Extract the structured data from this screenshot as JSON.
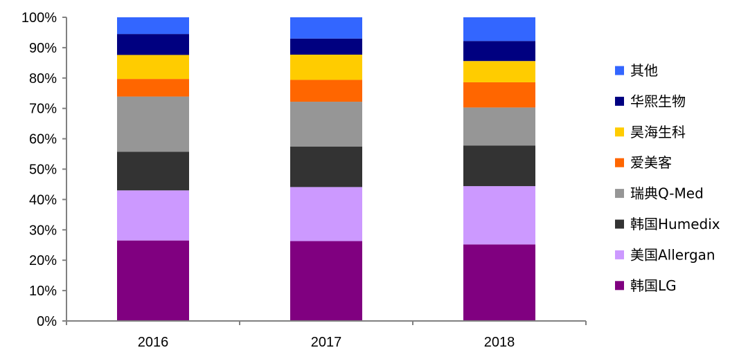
{
  "chart_data": {
    "type": "bar",
    "stacked": true,
    "categories": [
      "2016",
      "2017",
      "2018"
    ],
    "series": [
      {
        "name": "韩国LG",
        "color": "#800080",
        "values": [
          26.5,
          26.3,
          25.2
        ]
      },
      {
        "name": "美国Allergan",
        "color": "#CC99FF",
        "values": [
          16.5,
          17.8,
          19.2
        ]
      },
      {
        "name": "韩国Humedix",
        "color": "#333333",
        "values": [
          12.7,
          13.3,
          13.4
        ]
      },
      {
        "name": "瑞典Q-Med",
        "color": "#969696",
        "values": [
          18.2,
          14.8,
          12.5
        ]
      },
      {
        "name": "爱美客",
        "color": "#FF6600",
        "values": [
          5.8,
          7.2,
          8.3
        ]
      },
      {
        "name": "昊海生科",
        "color": "#FFCC00",
        "values": [
          7.9,
          8.3,
          7.0
        ]
      },
      {
        "name": "华熙生物",
        "color": "#000080",
        "values": [
          6.9,
          5.3,
          6.6
        ]
      },
      {
        "name": "其他",
        "color": "#3366FF",
        "values": [
          5.5,
          7.0,
          7.8
        ]
      }
    ],
    "y_ticks": [
      "0%",
      "10%",
      "20%",
      "30%",
      "40%",
      "50%",
      "60%",
      "70%",
      "80%",
      "90%",
      "100%"
    ],
    "ylim": [
      0,
      100
    ],
    "title": "",
    "xlabel": "",
    "ylabel": "",
    "legend_position": "right",
    "legend_order": [
      "其他",
      "华熙生物",
      "昊海生科",
      "爱美客",
      "瑞典Q-Med",
      "韩国Humedix",
      "美国Allergan",
      "韩国LG"
    ]
  }
}
